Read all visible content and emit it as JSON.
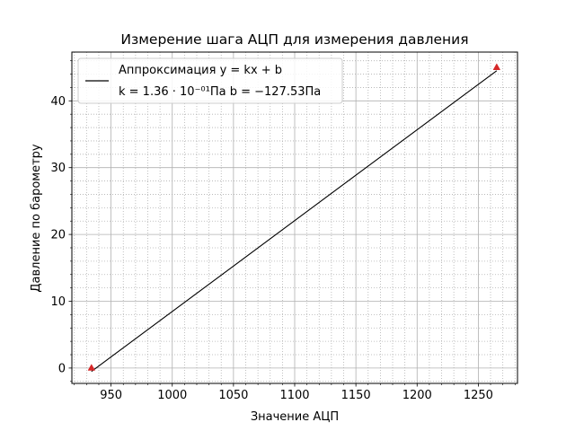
{
  "chart_data": {
    "type": "line",
    "title": "Измерение шага АЦП для измерения давления",
    "xlabel": "Значение АЦП",
    "ylabel": "Давление по барометру",
    "xlim": [
      918,
      1282
    ],
    "ylim": [
      -2.3,
      47.3
    ],
    "xticks": [
      950,
      1000,
      1050,
      1100,
      1150,
      1200,
      1250
    ],
    "yticks": [
      0,
      10,
      20,
      30,
      40
    ],
    "xminor_step": 10,
    "yminor_step": 2,
    "grid": true,
    "legend_placement": "upper left",
    "fit_line": {
      "name_line1": "Аппроксимация y = kx + b",
      "name_line2": "k = 1.36 · 10⁻⁰¹Па  b = −127.53Па",
      "k": 0.136,
      "b": -127.53,
      "x": [
        934,
        1265
      ],
      "color": "#000000"
    },
    "points": {
      "x": [
        934,
        1265
      ],
      "y": [
        0,
        45
      ],
      "marker": "triangle",
      "color": "#d62728"
    }
  }
}
